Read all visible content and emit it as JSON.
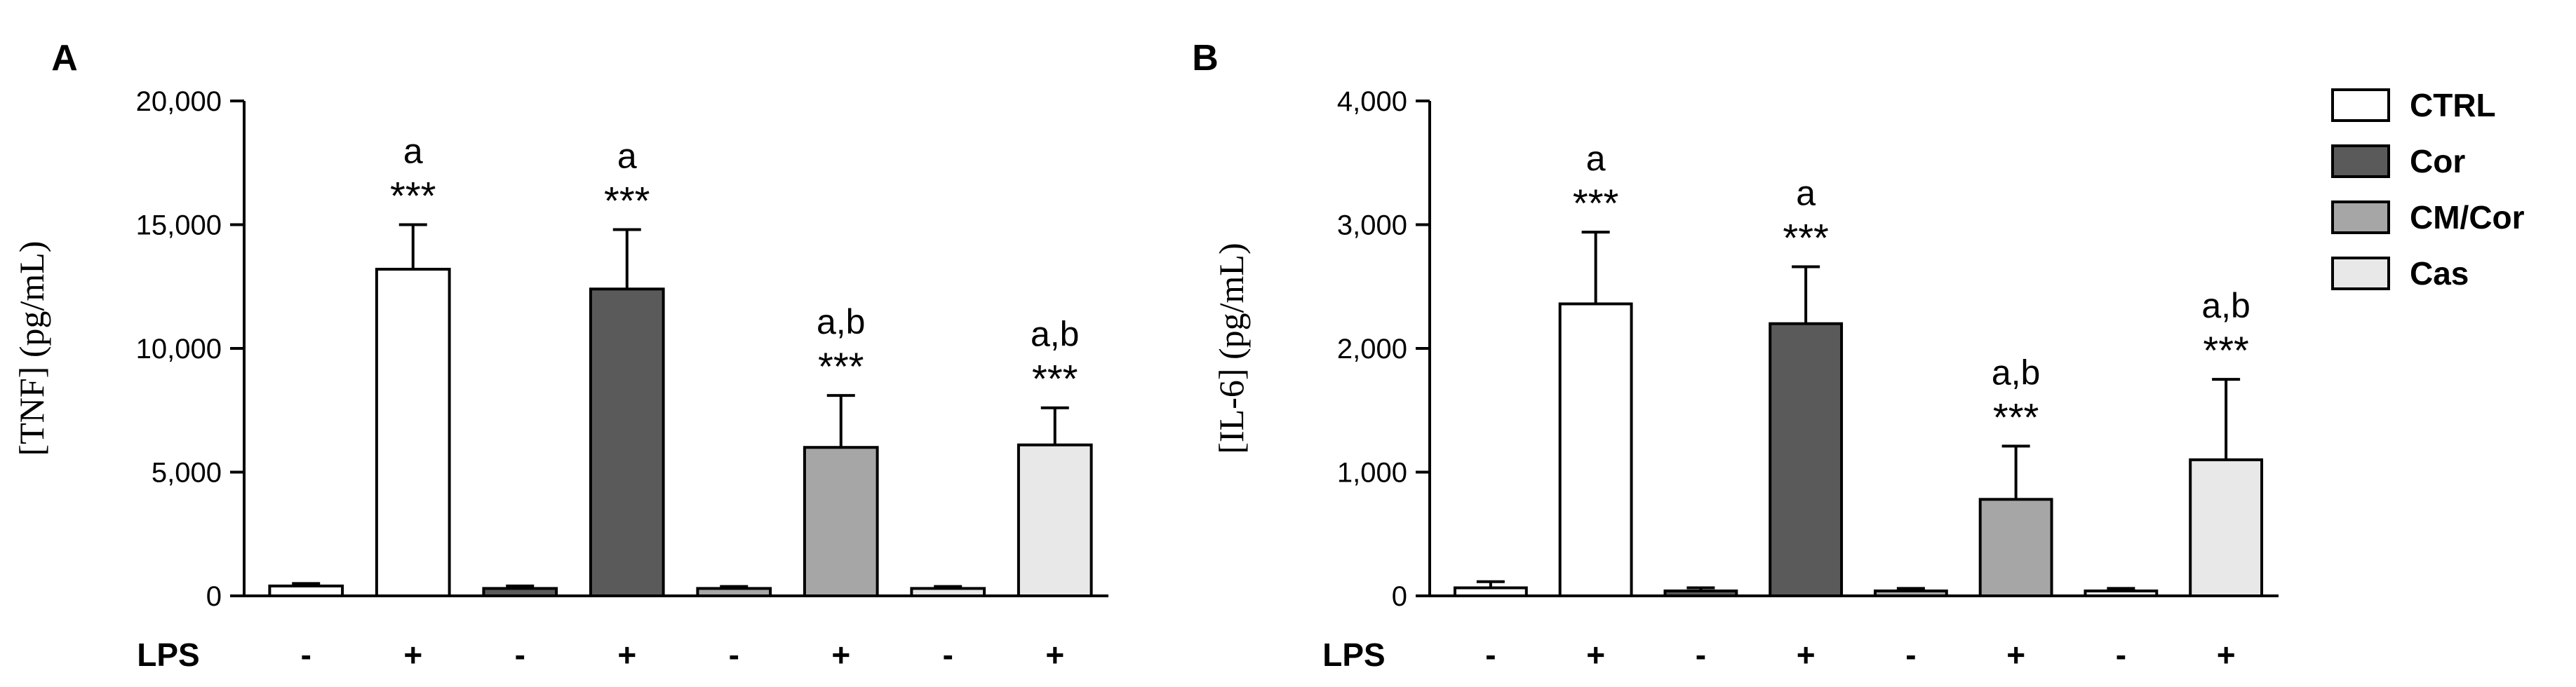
{
  "legend": {
    "entries": [
      {
        "label": "CTRL",
        "color": "#ffffff"
      },
      {
        "label": "Cor",
        "color": "#5a5a5a"
      },
      {
        "label": "CM/Cor",
        "color": "#a6a6a6"
      },
      {
        "label": "Cas",
        "color": "#e8e8e8"
      }
    ]
  },
  "x_row_label": "LPS",
  "chart_data": [
    {
      "type": "bar",
      "panel_label": "A",
      "ylabel": "[TNF] (pg/mL)",
      "ylim": [
        0,
        20000
      ],
      "yticks": [
        "0",
        "5,000",
        "10,000",
        "15,000",
        "20,000"
      ],
      "categories": [
        "-",
        "+",
        "-",
        "+",
        "-",
        "+",
        "-",
        "+"
      ],
      "groups": [
        "CTRL",
        "CTRL",
        "Cor",
        "Cor",
        "CM/Cor",
        "CM/Cor",
        "Cas",
        "Cas"
      ],
      "values": [
        400,
        13200,
        300,
        12400,
        300,
        6000,
        300,
        6100
      ],
      "errors": [
        100,
        1800,
        100,
        2400,
        80,
        2100,
        80,
        1500
      ],
      "annotations": [
        {
          "index": 1,
          "letters": "a",
          "stars": "***"
        },
        {
          "index": 3,
          "letters": "a",
          "stars": "***"
        },
        {
          "index": 5,
          "letters": "a,b",
          "stars": "***"
        },
        {
          "index": 7,
          "letters": "a,b",
          "stars": "***"
        }
      ]
    },
    {
      "type": "bar",
      "panel_label": "B",
      "ylabel": "[IL-6] (pg/mL)",
      "ylim": [
        0,
        4000
      ],
      "yticks": [
        "0",
        "1,000",
        "2,000",
        "3,000",
        "4,000"
      ],
      "categories": [
        "-",
        "+",
        "-",
        "+",
        "-",
        "+",
        "-",
        "+"
      ],
      "groups": [
        "CTRL",
        "CTRL",
        "Cor",
        "Cor",
        "CM/Cor",
        "CM/Cor",
        "Cas",
        "Cas"
      ],
      "values": [
        65,
        2360,
        40,
        2200,
        40,
        780,
        40,
        1100
      ],
      "errors": [
        50,
        580,
        25,
        460,
        20,
        430,
        20,
        650
      ],
      "annotations": [
        {
          "index": 1,
          "letters": "a",
          "stars": "***"
        },
        {
          "index": 3,
          "letters": "a",
          "stars": "***"
        },
        {
          "index": 5,
          "letters": "a,b",
          "stars": "***"
        },
        {
          "index": 7,
          "letters": "a,b",
          "stars": "***"
        }
      ]
    }
  ]
}
